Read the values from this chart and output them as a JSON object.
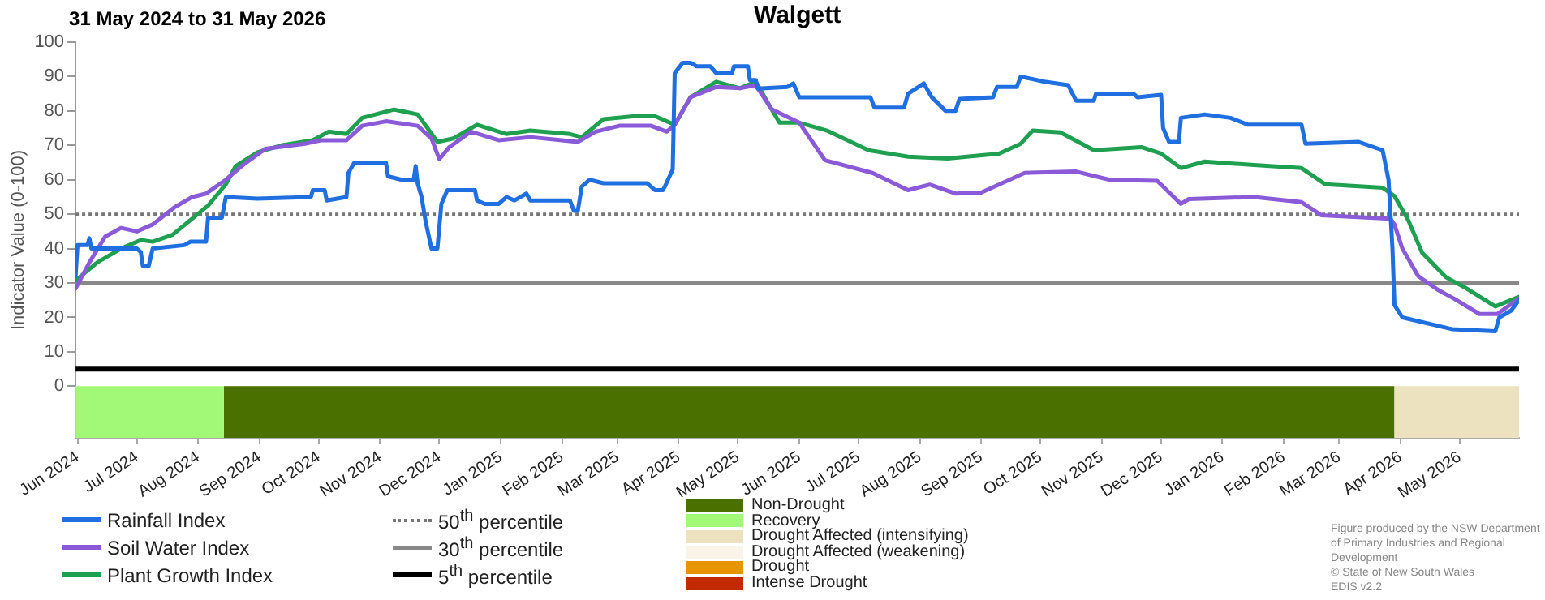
{
  "chart_data": {
    "type": "line",
    "title": "Walgett",
    "subtitle": "31 May 2024 to 31 May 2026",
    "ylabel": "Indicator Value (0-100)",
    "legend": "bottom",
    "line_style": "solid",
    "xlim": [
      "2024-05-31",
      "2026-05-31"
    ],
    "xticks": [
      {
        "value": "2024-06-01",
        "label": "Jun 2024"
      },
      {
        "value": "2024-07-01",
        "label": "Jul 2024"
      },
      {
        "value": "2024-08-01",
        "label": "Aug 2024"
      },
      {
        "value": "2024-09-01",
        "label": "Sep 2024"
      },
      {
        "value": "2024-10-01",
        "label": "Oct 2024"
      },
      {
        "value": "2024-11-01",
        "label": "Nov 2024"
      },
      {
        "value": "2024-12-01",
        "label": "Dec 2024"
      },
      {
        "value": "2025-01-01",
        "label": "Jan 2025"
      },
      {
        "value": "2025-02-01",
        "label": "Feb 2025"
      },
      {
        "value": "2025-03-01",
        "label": "Mar 2025"
      },
      {
        "value": "2025-04-01",
        "label": "Apr 2025"
      },
      {
        "value": "2025-05-01",
        "label": "May 2025"
      },
      {
        "value": "2025-06-01",
        "label": "Jun 2025"
      },
      {
        "value": "2025-07-01",
        "label": "Jul 2025"
      },
      {
        "value": "2025-08-01",
        "label": "Aug 2025"
      },
      {
        "value": "2025-09-01",
        "label": "Sep 2025"
      },
      {
        "value": "2025-10-01",
        "label": "Oct 2025"
      },
      {
        "value": "2025-11-01",
        "label": "Nov 2025"
      },
      {
        "value": "2025-12-01",
        "label": "Dec 2025"
      },
      {
        "value": "2026-01-01",
        "label": "Jan 2026"
      },
      {
        "value": "2026-02-01",
        "label": "Feb 2026"
      },
      {
        "value": "2026-03-01",
        "label": "Mar 2026"
      },
      {
        "value": "2026-04-01",
        "label": "Apr 2026"
      },
      {
        "value": "2026-05-01",
        "label": "May 2026"
      }
    ],
    "ylim": [
      -15,
      100
    ],
    "yticks": [
      0,
      10,
      20,
      30,
      40,
      50,
      60,
      70,
      80,
      90,
      100
    ],
    "series": [
      {
        "name": "Rainfall Index",
        "color": "#1f6fe0",
        "x": [
          "2024-05-31",
          "2024-06-01",
          "2024-06-06",
          "2024-06-07",
          "2024-06-08",
          "2024-07-01",
          "2024-07-03",
          "2024-07-04",
          "2024-07-07",
          "2024-07-09",
          "2024-07-25",
          "2024-07-28",
          "2024-08-05",
          "2024-08-06",
          "2024-08-13",
          "2024-08-15",
          "2024-08-31",
          "2024-09-27",
          "2024-09-28",
          "2024-10-04",
          "2024-10-05",
          "2024-10-15",
          "2024-10-16",
          "2024-10-19",
          "2024-11-04",
          "2024-11-05",
          "2024-11-12",
          "2024-11-18",
          "2024-11-19",
          "2024-11-20",
          "2024-11-22",
          "2024-11-24",
          "2024-11-27",
          "2024-11-30",
          "2024-12-02",
          "2024-12-05",
          "2024-12-19",
          "2024-12-20",
          "2024-12-24",
          "2024-12-31",
          "2025-01-04",
          "2025-01-08",
          "2025-01-14",
          "2025-01-16",
          "2025-02-05",
          "2025-02-07",
          "2025-02-09",
          "2025-02-11",
          "2025-02-15",
          "2025-02-22",
          "2025-03-16",
          "2025-03-20",
          "2025-03-24",
          "2025-03-25",
          "2025-03-29",
          "2025-03-30",
          "2025-04-03",
          "2025-04-07",
          "2025-04-10",
          "2025-04-17",
          "2025-04-20",
          "2025-04-28",
          "2025-04-29",
          "2025-05-06",
          "2025-05-07",
          "2025-05-10",
          "2025-05-11",
          "2025-05-26",
          "2025-05-29",
          "2025-06-01",
          "2025-07-07",
          "2025-07-09",
          "2025-07-24",
          "2025-07-26",
          "2025-08-03",
          "2025-08-07",
          "2025-08-14",
          "2025-08-19",
          "2025-08-21",
          "2025-09-07",
          "2025-09-09",
          "2025-09-19",
          "2025-09-21",
          "2025-10-03",
          "2025-10-15",
          "2025-10-19",
          "2025-10-28",
          "2025-10-29",
          "2025-11-17",
          "2025-11-19",
          "2025-12-01",
          "2025-12-02",
          "2025-12-05",
          "2025-12-10",
          "2025-12-11",
          "2025-12-23",
          "2026-01-05",
          "2026-01-14",
          "2026-02-10",
          "2026-02-12",
          "2026-03-11",
          "2026-03-23",
          "2026-03-26",
          "2026-03-28",
          "2026-03-29",
          "2026-04-02",
          "2026-04-27",
          "2026-05-19",
          "2026-05-21",
          "2026-05-27",
          "2026-05-31"
        ],
        "values": [
          32,
          41,
          41,
          43,
          40,
          40,
          39,
          35,
          35,
          40,
          41,
          42,
          42,
          49,
          49,
          55,
          54.5,
          55,
          57,
          57,
          54,
          55,
          62,
          65,
          65,
          61,
          60,
          60,
          64,
          59,
          55,
          48,
          40,
          40,
          53,
          57,
          57,
          54,
          53,
          53,
          55,
          54,
          56,
          54,
          54,
          51,
          51,
          58,
          60,
          59,
          59,
          57,
          57,
          58,
          63,
          91,
          94,
          94,
          93,
          93,
          91,
          91,
          93,
          93,
          89,
          89,
          86.5,
          87,
          88,
          84,
          84,
          81,
          81,
          85,
          88,
          84,
          80,
          80,
          83.5,
          84,
          87,
          87,
          90,
          88.5,
          87.5,
          83,
          83,
          85,
          85,
          84,
          84.7,
          75,
          71,
          71,
          78,
          79,
          78,
          76,
          76,
          70.5,
          71,
          68.6,
          60,
          40,
          23.6,
          20,
          16.6,
          16,
          20,
          22,
          25
        ]
      },
      {
        "name": "Soil Water Index",
        "color": "#8a5ad8",
        "x": [
          "2024-05-31",
          "2024-06-07",
          "2024-06-15",
          "2024-06-23",
          "2024-07-01",
          "2024-07-09",
          "2024-07-20",
          "2024-07-29",
          "2024-08-05",
          "2024-08-15",
          "2024-08-23",
          "2024-09-04",
          "2024-09-24",
          "2024-10-02",
          "2024-10-15",
          "2024-10-23",
          "2024-11-04",
          "2024-11-20",
          "2024-11-27",
          "2024-12-01",
          "2024-12-06",
          "2024-12-17",
          "2024-12-31",
          "2025-01-16",
          "2025-02-01",
          "2025-02-09",
          "2025-02-18",
          "2025-03-02",
          "2025-03-18",
          "2025-03-26",
          "2025-03-30",
          "2025-04-07",
          "2025-04-20",
          "2025-05-02",
          "2025-05-10",
          "2025-05-18",
          "2025-06-01",
          "2025-06-14",
          "2025-07-08",
          "2025-07-26",
          "2025-08-06",
          "2025-08-19",
          "2025-09-01",
          "2025-09-23",
          "2025-10-19",
          "2025-11-05",
          "2025-11-29",
          "2025-12-11",
          "2025-12-15",
          "2026-01-17",
          "2026-02-10",
          "2026-02-20",
          "2026-03-27",
          "2026-03-29",
          "2026-04-02",
          "2026-04-10",
          "2026-04-20",
          "2026-04-28",
          "2026-05-11",
          "2026-05-20",
          "2026-05-31"
        ],
        "values": [
          28.4,
          36,
          43.5,
          46,
          45,
          47,
          52,
          55,
          56,
          60,
          64,
          69,
          70.5,
          71.5,
          71.5,
          75.7,
          77,
          75.7,
          72,
          66,
          69.5,
          74,
          71.5,
          72.4,
          71.5,
          71,
          74,
          75.7,
          75.7,
          74,
          76,
          84,
          87,
          86.6,
          87.5,
          80.5,
          76.6,
          65.7,
          62,
          57,
          58.6,
          56,
          56.3,
          62,
          62.4,
          60,
          59.7,
          53,
          54.4,
          55,
          53.5,
          49.7,
          48.7,
          47,
          40,
          32,
          28,
          25.5,
          21,
          21,
          25.5
        ]
      },
      {
        "name": "Plant Growth Index",
        "color": "#1fa050",
        "x": [
          "2024-05-31",
          "2024-06-11",
          "2024-06-23",
          "2024-07-03",
          "2024-07-09",
          "2024-07-19",
          "2024-07-29",
          "2024-08-06",
          "2024-08-15",
          "2024-08-20",
          "2024-08-31",
          "2024-09-12",
          "2024-09-28",
          "2024-10-06",
          "2024-10-15",
          "2024-10-23",
          "2024-11-08",
          "2024-11-20",
          "2024-11-30",
          "2024-12-08",
          "2024-12-20",
          "2025-01-04",
          "2025-01-16",
          "2025-02-05",
          "2025-02-11",
          "2025-02-22",
          "2025-03-10",
          "2025-03-20",
          "2025-03-30",
          "2025-04-07",
          "2025-04-20",
          "2025-05-02",
          "2025-05-10",
          "2025-05-18",
          "2025-05-22",
          "2025-06-01",
          "2025-06-15",
          "2025-07-06",
          "2025-07-26",
          "2025-08-15",
          "2025-09-10",
          "2025-09-21",
          "2025-09-27",
          "2025-10-11",
          "2025-10-28",
          "2025-11-21",
          "2025-12-01",
          "2025-12-11",
          "2025-12-23",
          "2026-01-17",
          "2026-02-10",
          "2026-02-22",
          "2026-03-23",
          "2026-03-29",
          "2026-04-05",
          "2026-04-12",
          "2026-04-24",
          "2026-05-03",
          "2026-05-19",
          "2026-05-31"
        ],
        "values": [
          30.7,
          36,
          40,
          42.5,
          42,
          44,
          48.7,
          52.5,
          58.7,
          64,
          68,
          70,
          71.5,
          74,
          73.3,
          78,
          80.4,
          79,
          71,
          72,
          76,
          73.3,
          74.3,
          73.3,
          72.4,
          77.6,
          78.5,
          78.5,
          76,
          84,
          88.5,
          86.6,
          88.5,
          80.5,
          76.6,
          76.6,
          74.3,
          68.6,
          66.7,
          66.2,
          67.6,
          70.5,
          74.3,
          73.8,
          68.6,
          69.5,
          67.6,
          63.4,
          65.3,
          64.3,
          63.4,
          58.7,
          57.7,
          55.3,
          48.2,
          38.8,
          31.7,
          28.9,
          23.2,
          26
        ]
      }
    ],
    "ref_lines": [
      {
        "axis": "y",
        "value": 50,
        "label": "50$^{th}$ percentile",
        "color": "#777777",
        "line_style": "dotted"
      },
      {
        "axis": "y",
        "value": 30,
        "label": "30$^{th}$ percentile",
        "color": "#888888",
        "line_style": "solid"
      },
      {
        "axis": "y",
        "value": 5,
        "label": "5$^{th}$ percentile",
        "color": "#000000",
        "line_style": "solid"
      }
    ],
    "bands": [
      {
        "axis": "x",
        "from": "2024-08-14",
        "to": "2026-03-29",
        "label": "Non-Drought",
        "color": "#4a7000"
      },
      {
        "axis": "x",
        "from": "2024-05-31",
        "to": "2024-08-14",
        "label": "Recovery",
        "color": "#a2f877"
      },
      {
        "axis": "x",
        "from": "2026-03-29",
        "to": "2026-05-31",
        "label": "Drought Affected (intensifying)",
        "color": "#ede2c0"
      }
    ],
    "annotations": [
      "Drought Affected (weakening)",
      "Drought",
      "Intense Drought",
      "Figure produced by the NSW Department of Primary Industries and Regional Development",
      "© State of New South Wales",
      "EDIS v2.2"
    ]
  }
}
